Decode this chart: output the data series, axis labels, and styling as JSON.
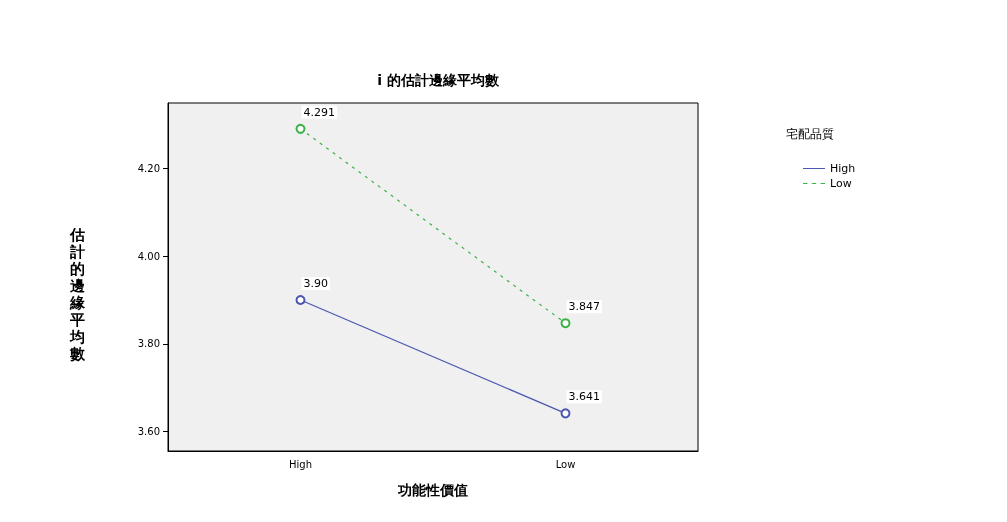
{
  "chart_data": {
    "type": "line",
    "title": "i 的估計邊緣平均數",
    "xlabel": "功能性價值",
    "ylabel": "估計的邊緣平均數",
    "legend_title": "宅配品質",
    "categories": [
      "High",
      "Low"
    ],
    "series": [
      {
        "name": "High",
        "color": "#4b57b0",
        "values": [
          3.9,
          3.641
        ],
        "value_labels": [
          "3.90",
          "3.641"
        ],
        "line_style": "solid"
      },
      {
        "name": "Low",
        "color": "#3bb24a",
        "values": [
          4.291,
          3.847
        ],
        "value_labels": [
          "4.291",
          "3.847"
        ],
        "line_style": "dashed"
      }
    ],
    "ylim": [
      3.555,
      4.35
    ],
    "yticks": [
      {
        "value": 3.6,
        "label": "3.60"
      },
      {
        "value": 3.8,
        "label": "3.80"
      },
      {
        "value": 4.0,
        "label": "4.00"
      },
      {
        "value": 4.2,
        "label": "4.20"
      }
    ],
    "legend": "top right",
    "marker": "circle",
    "grid": false
  }
}
